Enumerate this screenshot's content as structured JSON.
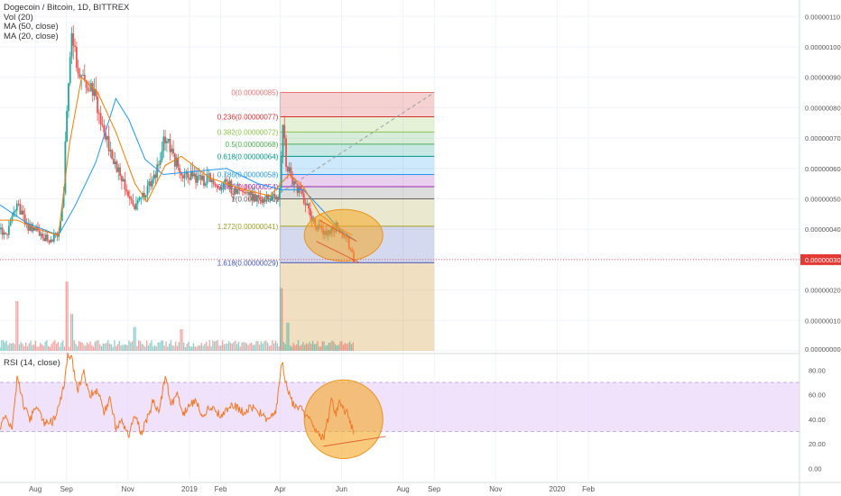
{
  "header": {
    "symbol_line": "Dogecoin / Bitcoin, 1D, BITTREX",
    "indicators": [
      "Vol (20)",
      "MA (50, close)",
      "MA (20, close)"
    ]
  },
  "rsi_panel": {
    "title": "RSI (14, close)"
  },
  "colors": {
    "up": "#26a69a",
    "down": "#ef5350",
    "ma50": "#2196f3",
    "ma20": "#f57c00",
    "rsi": "#f07a2a",
    "rsi_band": "#e9d5f8",
    "price_line": "#e53935",
    "highlight": "#f5a623"
  },
  "chart_data": [
    {
      "type": "candlestick",
      "title": "Dogecoin / Bitcoin, 1D, BITTREX",
      "xlabel": "",
      "ylabel": "",
      "x_ticks": [
        "Aug",
        "Sep",
        "Nov",
        "2019",
        "Feb",
        "Apr",
        "Jun",
        "Aug",
        "Sep",
        "Nov",
        "2020",
        "Feb"
      ],
      "y_ticks": [
        "0.00000110",
        "0.00000100",
        "0.00000090",
        "0.00000080",
        "0.00000070",
        "0.00000060",
        "0.00000050",
        "0.00000040",
        "0.00000030",
        "0.00000020",
        "0.00000010",
        "0.00000000"
      ],
      "ylim": [
        0.0,
        1.153e-06
      ],
      "last_price": "0.00000030",
      "price_path": [
        {
          "x": "2018-06-27",
          "y": 4e-07
        },
        {
          "x": "2018-07-05",
          "y": 3.9e-07
        },
        {
          "x": "2018-07-14",
          "y": 4.8e-07
        },
        {
          "x": "2018-07-24",
          "y": 4.1e-07
        },
        {
          "x": "2018-08-04",
          "y": 3.9e-07
        },
        {
          "x": "2018-08-15",
          "y": 3.6e-07
        },
        {
          "x": "2018-08-24",
          "y": 3.9e-07
        },
        {
          "x": "2018-08-29",
          "y": 5.2e-07
        },
        {
          "x": "2018-09-02",
          "y": 8.5e-07
        },
        {
          "x": "2018-09-06",
          "y": 1.05e-06
        },
        {
          "x": "2018-09-10",
          "y": 9.9e-07
        },
        {
          "x": "2018-09-14",
          "y": 8.7e-07
        },
        {
          "x": "2018-09-22",
          "y": 8.9e-07
        },
        {
          "x": "2018-10-02",
          "y": 8.1e-07
        },
        {
          "x": "2018-10-14",
          "y": 6.7e-07
        },
        {
          "x": "2018-10-26",
          "y": 5.7e-07
        },
        {
          "x": "2018-11-08",
          "y": 4.7e-07
        },
        {
          "x": "2018-11-18",
          "y": 5.2e-07
        },
        {
          "x": "2018-11-28",
          "y": 5.7e-07
        },
        {
          "x": "2018-12-08",
          "y": 7.1e-07
        },
        {
          "x": "2018-12-16",
          "y": 6.3e-07
        },
        {
          "x": "2018-12-26",
          "y": 5.8e-07
        },
        {
          "x": "2019-01-12",
          "y": 5.7e-07
        },
        {
          "x": "2019-01-30",
          "y": 5.5e-07
        },
        {
          "x": "2019-02-18",
          "y": 5.3e-07
        },
        {
          "x": "2019-03-06",
          "y": 5.1e-07
        },
        {
          "x": "2019-03-24",
          "y": 5e-07
        },
        {
          "x": "2019-04-01",
          "y": 5.2e-07
        },
        {
          "x": "2019-04-03",
          "y": 7.4e-07
        },
        {
          "x": "2019-04-08",
          "y": 6e-07
        },
        {
          "x": "2019-04-17",
          "y": 5.4e-07
        },
        {
          "x": "2019-04-26",
          "y": 4.8e-07
        },
        {
          "x": "2019-05-08",
          "y": 4.1e-07
        },
        {
          "x": "2019-05-18",
          "y": 3.8e-07
        },
        {
          "x": "2019-05-26",
          "y": 4.1e-07
        },
        {
          "x": "2019-06-06",
          "y": 3.7e-07
        },
        {
          "x": "2019-06-13",
          "y": 3e-07
        }
      ],
      "ma50_path": [
        {
          "x": "2018-06-27",
          "y": 4.8e-07
        },
        {
          "x": "2018-07-24",
          "y": 4.2e-07
        },
        {
          "x": "2018-08-24",
          "y": 3.8e-07
        },
        {
          "x": "2018-09-10",
          "y": 4.8e-07
        },
        {
          "x": "2018-09-30",
          "y": 6.2e-07
        },
        {
          "x": "2018-10-20",
          "y": 8.3e-07
        },
        {
          "x": "2018-11-02",
          "y": 7.6e-07
        },
        {
          "x": "2018-11-18",
          "y": 6.3e-07
        },
        {
          "x": "2018-12-06",
          "y": 5.8e-07
        },
        {
          "x": "2019-01-05",
          "y": 5.9e-07
        },
        {
          "x": "2019-02-07",
          "y": 6e-07
        },
        {
          "x": "2019-03-10",
          "y": 5.5e-07
        },
        {
          "x": "2019-04-03",
          "y": 5.3e-07
        },
        {
          "x": "2019-04-24",
          "y": 5.3e-07
        },
        {
          "x": "2019-05-14",
          "y": 4.6e-07
        },
        {
          "x": "2019-05-30",
          "y": 4e-07
        },
        {
          "x": "2019-06-16",
          "y": 3.6e-07
        }
      ],
      "ma20_path": [
        {
          "x": "2018-06-27",
          "y": 4.3e-07
        },
        {
          "x": "2018-07-14",
          "y": 4.3e-07
        },
        {
          "x": "2018-08-04",
          "y": 4e-07
        },
        {
          "x": "2018-08-24",
          "y": 3.8e-07
        },
        {
          "x": "2018-09-04",
          "y": 6.8e-07
        },
        {
          "x": "2018-09-16",
          "y": 9e-07
        },
        {
          "x": "2018-10-02",
          "y": 8.5e-07
        },
        {
          "x": "2018-10-20",
          "y": 7.2e-07
        },
        {
          "x": "2018-11-08",
          "y": 5.5e-07
        },
        {
          "x": "2018-11-20",
          "y": 4.9e-07
        },
        {
          "x": "2018-12-08",
          "y": 6.1e-07
        },
        {
          "x": "2018-12-24",
          "y": 6.4e-07
        },
        {
          "x": "2019-01-21",
          "y": 5.7e-07
        },
        {
          "x": "2019-02-24",
          "y": 5.3e-07
        },
        {
          "x": "2019-03-22",
          "y": 5.1e-07
        },
        {
          "x": "2019-04-10",
          "y": 5.8e-07
        },
        {
          "x": "2019-04-24",
          "y": 5.4e-07
        },
        {
          "x": "2019-05-10",
          "y": 4.5e-07
        },
        {
          "x": "2019-05-26",
          "y": 4.1e-07
        },
        {
          "x": "2019-06-12",
          "y": 3.8e-07
        }
      ],
      "volume_spikes": [
        {
          "x": "2018-07-14",
          "rel": 0.9
        },
        {
          "x": "2018-09-02",
          "rel": 1.35
        },
        {
          "x": "2018-09-06",
          "rel": 0.6
        },
        {
          "x": "2018-11-08",
          "rel": 0.3
        },
        {
          "x": "2018-12-24",
          "rel": 0.25
        },
        {
          "x": "2019-04-02",
          "rel": 1.2
        },
        {
          "x": "2019-04-08",
          "rel": 0.4
        }
      ],
      "fibonacci": {
        "start_x": "2019-04-01",
        "end_x": "2019-09-01",
        "levels": [
          {
            "label": "0(0.00000085)",
            "value": 8.5e-07,
            "color": "#e57373"
          },
          {
            "label": "0.236(0.00000077)",
            "value": 7.7e-07,
            "color": "#d32f2f"
          },
          {
            "label": "0.382(0.00000072)",
            "value": 7.2e-07,
            "color": "#8bc34a"
          },
          {
            "label": "0.5(0.00000068)",
            "value": 6.8e-07,
            "color": "#4caf50"
          },
          {
            "label": "0.618(0.00000064)",
            "value": 6.4e-07,
            "color": "#009688"
          },
          {
            "label": "0.786(0.00000058)",
            "value": 5.8e-07,
            "color": "#2196f3"
          },
          {
            "label": "0.886(0.00000054)",
            "value": 5.4e-07,
            "color": "#9c27b0"
          },
          {
            "label": "1(0.00000050)",
            "value": 5e-07,
            "color": "#616161"
          },
          {
            "label": "1.272(0.00000041)",
            "value": 4.1e-07,
            "color": "#9e9d24"
          },
          {
            "label": "1.618(0.00000029)",
            "value": 2.9e-07,
            "color": "#3f51b5"
          }
        ]
      },
      "annotations": [
        {
          "kind": "dashed-trend",
          "from": {
            "x": "2019-04-01",
            "y": 5.2e-07
          },
          "to": {
            "x": "2019-09-01",
            "y": 8.5e-07
          }
        },
        {
          "kind": "ellipse",
          "center": {
            "x": "2019-06-03",
            "y": 3.8e-07
          },
          "rx_days": 39,
          "ry_value": 8.5e-08
        },
        {
          "kind": "trendline",
          "from": {
            "x": "2019-05-07",
            "y": 3.6e-07
          },
          "to": {
            "x": "2019-06-19",
            "y": 2.9e-07
          }
        },
        {
          "kind": "trendline",
          "from": {
            "x": "2019-05-10",
            "y": 4.3e-07
          },
          "to": {
            "x": "2019-06-16",
            "y": 3.6e-07
          }
        }
      ]
    },
    {
      "type": "line",
      "title": "RSI (14, close)",
      "xlabel": "",
      "ylabel": "",
      "y_ticks": [
        "80.00",
        "60.00",
        "40.00",
        "20.00",
        "0.00"
      ],
      "ylim": [
        -10,
        92
      ],
      "band": [
        30,
        70
      ],
      "series": [
        {
          "points": [
            {
              "x": "2018-06-27",
              "y": 35
            },
            {
              "x": "2018-07-03",
              "y": 45
            },
            {
              "x": "2018-07-09",
              "y": 31
            },
            {
              "x": "2018-07-14",
              "y": 74
            },
            {
              "x": "2018-07-20",
              "y": 53
            },
            {
              "x": "2018-07-26",
              "y": 40
            },
            {
              "x": "2018-08-04",
              "y": 50
            },
            {
              "x": "2018-08-10",
              "y": 36
            },
            {
              "x": "2018-08-18",
              "y": 38
            },
            {
              "x": "2018-08-24",
              "y": 48
            },
            {
              "x": "2018-08-30",
              "y": 70
            },
            {
              "x": "2018-09-02",
              "y": 92
            },
            {
              "x": "2018-09-06",
              "y": 90
            },
            {
              "x": "2018-09-12",
              "y": 64
            },
            {
              "x": "2018-09-18",
              "y": 78
            },
            {
              "x": "2018-09-24",
              "y": 60
            },
            {
              "x": "2018-10-02",
              "y": 62
            },
            {
              "x": "2018-10-08",
              "y": 46
            },
            {
              "x": "2018-10-14",
              "y": 56
            },
            {
              "x": "2018-10-20",
              "y": 34
            },
            {
              "x": "2018-10-26",
              "y": 40
            },
            {
              "x": "2018-11-02",
              "y": 26
            },
            {
              "x": "2018-11-08",
              "y": 46
            },
            {
              "x": "2018-11-14",
              "y": 28
            },
            {
              "x": "2018-11-20",
              "y": 40
            },
            {
              "x": "2018-11-26",
              "y": 55
            },
            {
              "x": "2018-12-02",
              "y": 45
            },
            {
              "x": "2018-12-08",
              "y": 76
            },
            {
              "x": "2018-12-14",
              "y": 52
            },
            {
              "x": "2018-12-20",
              "y": 60
            },
            {
              "x": "2018-12-26",
              "y": 45
            },
            {
              "x": "2019-01-06",
              "y": 55
            },
            {
              "x": "2019-01-14",
              "y": 44
            },
            {
              "x": "2019-01-23",
              "y": 51
            },
            {
              "x": "2019-02-02",
              "y": 42
            },
            {
              "x": "2019-02-12",
              "y": 52
            },
            {
              "x": "2019-02-24",
              "y": 46
            },
            {
              "x": "2019-03-06",
              "y": 50
            },
            {
              "x": "2019-03-18",
              "y": 41
            },
            {
              "x": "2019-03-28",
              "y": 48
            },
            {
              "x": "2019-04-03",
              "y": 86
            },
            {
              "x": "2019-04-08",
              "y": 66
            },
            {
              "x": "2019-04-14",
              "y": 52
            },
            {
              "x": "2019-04-22",
              "y": 48
            },
            {
              "x": "2019-04-30",
              "y": 39
            },
            {
              "x": "2019-05-08",
              "y": 31
            },
            {
              "x": "2019-05-14",
              "y": 24
            },
            {
              "x": "2019-05-18",
              "y": 38
            },
            {
              "x": "2019-05-22",
              "y": 55
            },
            {
              "x": "2019-05-26",
              "y": 44
            },
            {
              "x": "2019-05-30",
              "y": 55
            },
            {
              "x": "2019-06-03",
              "y": 48
            },
            {
              "x": "2019-06-07",
              "y": 44
            },
            {
              "x": "2019-06-11",
              "y": 34
            },
            {
              "x": "2019-06-14",
              "y": 27
            }
          ]
        }
      ],
      "annotations": [
        {
          "kind": "ellipse",
          "center": {
            "x": "2019-06-03",
            "y": 40
          },
          "rx_days": 39,
          "ry_value": 32
        },
        {
          "kind": "trendline",
          "from": {
            "x": "2019-05-14",
            "y": 18
          },
          "to": {
            "x": "2019-07-15",
            "y": 26
          }
        }
      ]
    }
  ]
}
